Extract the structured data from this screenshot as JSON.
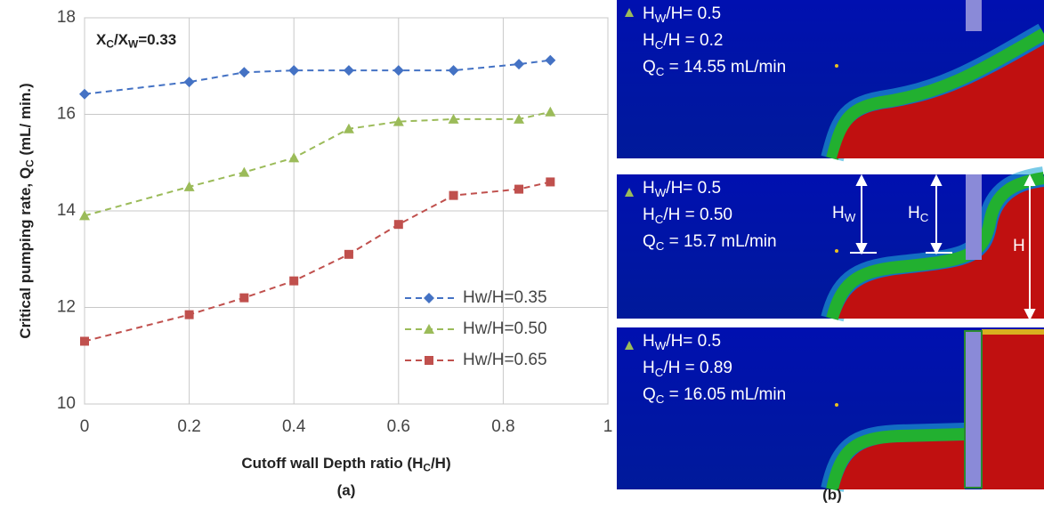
{
  "chart_data": {
    "type": "line",
    "annotation": [
      "X",
      "C",
      "/X",
      "W",
      "=0.33"
    ],
    "x_label": [
      "Cutoff wall Depth ratio (H",
      "C",
      "/H)"
    ],
    "y_label": [
      "Critical pumping rate, Q",
      "C",
      " (mL/ min.)"
    ],
    "caption": "(a)",
    "x": [
      0,
      0.2,
      0.305,
      0.4,
      0.505,
      0.6,
      0.705,
      0.83,
      0.89
    ],
    "series": [
      {
        "name": "Hw/H=0.35",
        "color": "#4472c4",
        "marker": "diamond",
        "values": [
          16.42,
          16.67,
          16.87,
          16.91,
          16.91,
          16.91,
          16.91,
          17.04,
          17.12
        ]
      },
      {
        "name": "Hw/H=0.50",
        "color": "#9bbb59",
        "marker": "triangle",
        "values": [
          13.9,
          14.5,
          14.8,
          15.1,
          15.7,
          15.85,
          15.9,
          15.9,
          16.05
        ]
      },
      {
        "name": "Hw/H=0.65",
        "color": "#c0504d",
        "marker": "square",
        "values": [
          11.3,
          11.85,
          12.2,
          12.55,
          13.1,
          13.72,
          14.32,
          14.45,
          14.6
        ]
      }
    ],
    "xlim": [
      0,
      1
    ],
    "xticks": [
      0,
      0.2,
      0.4,
      0.6,
      0.8,
      1
    ],
    "ylim": [
      10,
      18
    ],
    "yticks": [
      10,
      12,
      14,
      16,
      18
    ],
    "grid": true,
    "legend": "lower right"
  },
  "simulations": {
    "caption": "(b)",
    "panels": [
      {
        "lines": [
          [
            "H",
            "W",
            "/H= 0.5"
          ],
          [
            "H",
            "C",
            "/H = 0.2"
          ],
          [
            "Q",
            "C",
            " = 14.55 mL/min"
          ]
        ]
      },
      {
        "lines": [
          [
            "H",
            "W",
            "/H= 0.5"
          ],
          [
            "H",
            "C",
            "/H = 0.50"
          ],
          [
            "Q",
            "C",
            " = 15.7 mL/min"
          ]
        ],
        "arrows": [
          [
            "H",
            "W"
          ],
          [
            "H",
            "C"
          ],
          [
            "H"
          ]
        ]
      },
      {
        "lines": [
          [
            "H",
            "W",
            "/H= 0.5"
          ],
          [
            "H",
            "C",
            "/H = 0.89"
          ],
          [
            "Q",
            "C",
            " = 16.05 mL/min"
          ]
        ]
      }
    ]
  }
}
